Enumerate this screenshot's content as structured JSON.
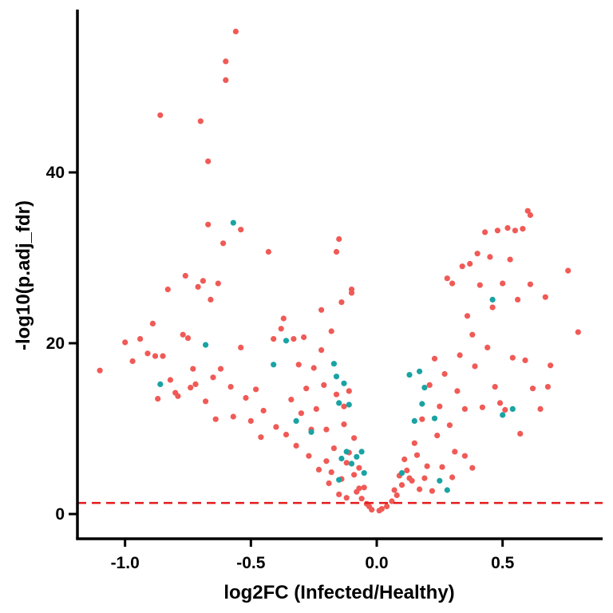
{
  "chart_data": {
    "type": "scatter",
    "title": "",
    "xlabel": "log2FC (Infected/Healthy)",
    "ylabel": "-log10(p.adj_fdr)",
    "xlim": [
      -1.2,
      0.9
    ],
    "ylim": [
      -2.5,
      59
    ],
    "xticks": [
      -1.0,
      -0.5,
      0.0,
      0.5
    ],
    "xtick_labels": [
      "-1.0",
      "-0.5",
      "0.0",
      "0.5"
    ],
    "yticks": [
      0,
      20,
      40
    ],
    "ytick_labels": [
      "0",
      "20",
      "40"
    ],
    "grid": false,
    "legend": "none",
    "threshold": {
      "y": 1.3,
      "color": "#e31a1c",
      "style": "dashed"
    },
    "series": [
      {
        "color": "#f05a56",
        "points": [
          [
            -1.1,
            16.8
          ],
          [
            -1.0,
            20.1
          ],
          [
            -0.97,
            17.9
          ],
          [
            -0.94,
            20.5
          ],
          [
            -0.91,
            18.8
          ],
          [
            -0.89,
            22.3
          ],
          [
            -0.88,
            18.5
          ],
          [
            -0.87,
            13.5
          ],
          [
            -0.86,
            46.7
          ],
          [
            -0.85,
            18.5
          ],
          [
            -0.83,
            26.3
          ],
          [
            -0.82,
            15.7
          ],
          [
            -0.8,
            14.2
          ],
          [
            -0.79,
            13.8
          ],
          [
            -0.77,
            21.0
          ],
          [
            -0.76,
            27.9
          ],
          [
            -0.75,
            20.6
          ],
          [
            -0.74,
            14.8
          ],
          [
            -0.73,
            17.0
          ],
          [
            -0.72,
            15.2
          ],
          [
            -0.71,
            26.6
          ],
          [
            -0.7,
            46.0
          ],
          [
            -0.69,
            27.3
          ],
          [
            -0.68,
            13.2
          ],
          [
            -0.67,
            33.9
          ],
          [
            -0.67,
            41.3
          ],
          [
            -0.66,
            25.1
          ],
          [
            -0.65,
            16.0
          ],
          [
            -0.64,
            11.1
          ],
          [
            -0.63,
            27.0
          ],
          [
            -0.62,
            17.0
          ],
          [
            -0.61,
            31.7
          ],
          [
            -0.6,
            53.0
          ],
          [
            -0.6,
            50.8
          ],
          [
            -0.58,
            14.9
          ],
          [
            -0.57,
            11.4
          ],
          [
            -0.56,
            56.5
          ],
          [
            -0.54,
            33.3
          ],
          [
            -0.54,
            19.5
          ],
          [
            -0.52,
            13.6
          ],
          [
            -0.5,
            10.9
          ],
          [
            -0.48,
            14.6
          ],
          [
            -0.46,
            9.0
          ],
          [
            -0.45,
            12.1
          ],
          [
            -0.43,
            30.7
          ],
          [
            -0.41,
            20.5
          ],
          [
            -0.4,
            10.2
          ],
          [
            -0.38,
            21.7
          ],
          [
            -0.37,
            22.9
          ],
          [
            -0.36,
            9.3
          ],
          [
            -0.34,
            13.4
          ],
          [
            -0.33,
            20.5
          ],
          [
            -0.32,
            8.0
          ],
          [
            -0.31,
            17.5
          ],
          [
            -0.3,
            11.8
          ],
          [
            -0.29,
            20.7
          ],
          [
            -0.28,
            14.7
          ],
          [
            -0.27,
            6.8
          ],
          [
            -0.26,
            9.9
          ],
          [
            -0.25,
            17.1
          ],
          [
            -0.24,
            12.3
          ],
          [
            -0.23,
            5.2
          ],
          [
            -0.22,
            23.9
          ],
          [
            -0.22,
            19.2
          ],
          [
            -0.21,
            15.1
          ],
          [
            -0.2,
            9.9
          ],
          [
            -0.19,
            3.6
          ],
          [
            -0.18,
            21.4
          ],
          [
            -0.17,
            7.7
          ],
          [
            -0.16,
            30.7
          ],
          [
            -0.15,
            32.2
          ],
          [
            -0.14,
            24.8
          ],
          [
            -0.14,
            4.1
          ],
          [
            -0.13,
            12.6
          ],
          [
            -0.12,
            6.0
          ],
          [
            -0.11,
            14.4
          ],
          [
            -0.1,
            26.3
          ],
          [
            -0.1,
            25.9
          ],
          [
            -0.09,
            8.9
          ],
          [
            -0.08,
            2.6
          ],
          [
            -0.07,
            5.4
          ],
          [
            -0.06,
            1.8
          ],
          [
            -0.05,
            3.1
          ],
          [
            -0.04,
            1.2
          ],
          [
            -0.03,
            0.9
          ],
          [
            -0.02,
            0.5
          ],
          [
            0.01,
            0.4
          ],
          [
            0.02,
            0.6
          ],
          [
            0.04,
            0.9
          ],
          [
            0.06,
            1.5
          ],
          [
            0.08,
            2.2
          ],
          [
            0.1,
            3.4
          ],
          [
            0.12,
            5.1
          ],
          [
            0.13,
            4.2
          ],
          [
            0.15,
            8.3
          ],
          [
            0.16,
            6.9
          ],
          [
            0.18,
            11.1
          ],
          [
            0.2,
            5.6
          ],
          [
            0.21,
            15.1
          ],
          [
            0.23,
            18.2
          ],
          [
            0.24,
            9.2
          ],
          [
            0.25,
            12.6
          ],
          [
            0.27,
            16.4
          ],
          [
            0.28,
            27.6
          ],
          [
            0.29,
            10.4
          ],
          [
            0.3,
            27.0
          ],
          [
            0.31,
            7.3
          ],
          [
            0.32,
            14.4
          ],
          [
            0.33,
            18.6
          ],
          [
            0.34,
            29.0
          ],
          [
            0.35,
            12.3
          ],
          [
            0.36,
            23.2
          ],
          [
            0.37,
            29.3
          ],
          [
            0.38,
            21.0
          ],
          [
            0.39,
            17.3
          ],
          [
            0.4,
            30.5
          ],
          [
            0.41,
            26.8
          ],
          [
            0.42,
            12.5
          ],
          [
            0.43,
            33.0
          ],
          [
            0.44,
            19.5
          ],
          [
            0.45,
            30.1
          ],
          [
            0.46,
            24.2
          ],
          [
            0.47,
            14.9
          ],
          [
            0.48,
            33.2
          ],
          [
            0.49,
            13.0
          ],
          [
            0.5,
            27.0
          ],
          [
            0.51,
            12.2
          ],
          [
            0.52,
            33.5
          ],
          [
            0.53,
            29.8
          ],
          [
            0.54,
            18.3
          ],
          [
            0.55,
            33.2
          ],
          [
            0.56,
            25.1
          ],
          [
            0.57,
            9.4
          ],
          [
            0.58,
            33.4
          ],
          [
            0.59,
            18.0
          ],
          [
            0.6,
            35.5
          ],
          [
            0.61,
            35.0
          ],
          [
            0.61,
            26.9
          ],
          [
            0.62,
            14.7
          ],
          [
            0.65,
            12.3
          ],
          [
            0.67,
            25.4
          ],
          [
            0.68,
            14.9
          ],
          [
            0.69,
            17.4
          ],
          [
            0.76,
            28.5
          ],
          [
            0.8,
            21.3
          ],
          [
            -0.16,
            14.0
          ],
          [
            -0.13,
            10.5
          ],
          [
            -0.11,
            7.2
          ],
          [
            -0.09,
            4.6
          ],
          [
            -0.07,
            3.0
          ],
          [
            0.07,
            2.8
          ],
          [
            0.09,
            4.5
          ],
          [
            0.11,
            6.4
          ],
          [
            0.14,
            3.9
          ],
          [
            0.17,
            2.9
          ],
          [
            -0.2,
            6.2
          ],
          [
            -0.18,
            4.9
          ],
          [
            -0.15,
            2.3
          ],
          [
            -0.12,
            1.9
          ],
          [
            0.19,
            4.2
          ],
          [
            0.22,
            2.7
          ],
          [
            0.26,
            5.5
          ],
          [
            0.3,
            4.3
          ],
          [
            0.35,
            6.8
          ],
          [
            0.38,
            5.4
          ]
        ]
      },
      {
        "color": "#1aa3a3",
        "points": [
          [
            -0.86,
            15.2
          ],
          [
            -0.68,
            19.8
          ],
          [
            -0.57,
            34.1
          ],
          [
            -0.41,
            17.5
          ],
          [
            -0.36,
            20.3
          ],
          [
            -0.32,
            10.9
          ],
          [
            -0.26,
            9.6
          ],
          [
            -0.17,
            17.6
          ],
          [
            -0.16,
            16.1
          ],
          [
            -0.15,
            13.0
          ],
          [
            -0.14,
            6.5
          ],
          [
            -0.13,
            15.3
          ],
          [
            -0.12,
            7.3
          ],
          [
            -0.11,
            12.8
          ],
          [
            -0.1,
            5.9
          ],
          [
            -0.08,
            6.7
          ],
          [
            -0.06,
            7.3
          ],
          [
            -0.05,
            4.8
          ],
          [
            -0.15,
            4.0
          ],
          [
            0.1,
            4.8
          ],
          [
            0.13,
            16.3
          ],
          [
            0.15,
            10.9
          ],
          [
            0.17,
            16.7
          ],
          [
            0.18,
            12.9
          ],
          [
            0.19,
            14.8
          ],
          [
            0.23,
            11.2
          ],
          [
            0.25,
            3.9
          ],
          [
            0.28,
            2.8
          ],
          [
            0.46,
            25.1
          ],
          [
            0.5,
            11.6
          ],
          [
            0.54,
            12.3
          ]
        ]
      }
    ]
  }
}
